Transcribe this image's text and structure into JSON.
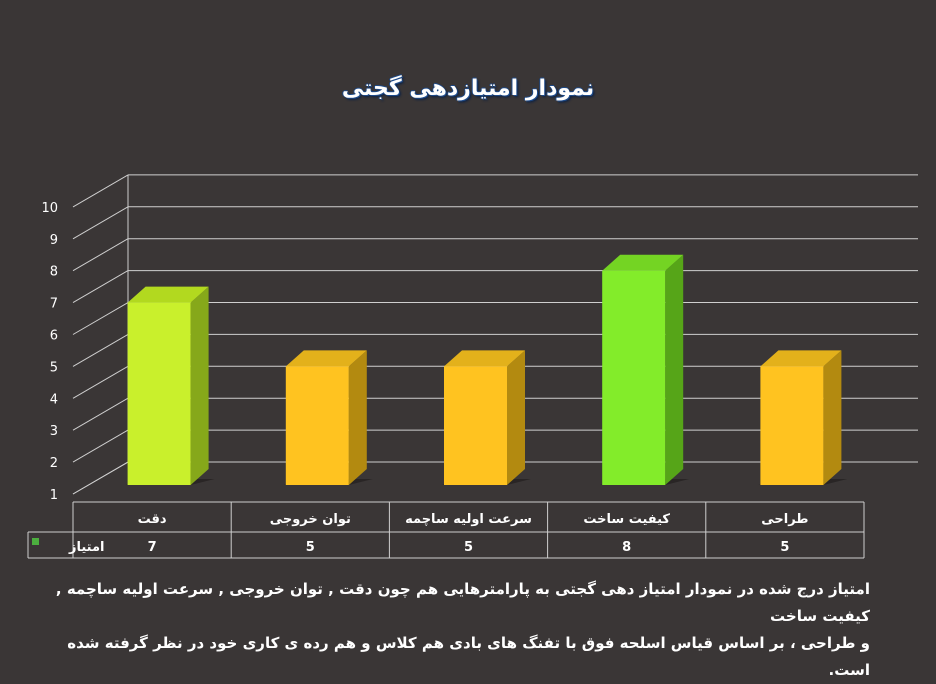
{
  "chart_data": {
    "type": "bar",
    "title": "نمودار امتیازدهی گجتی",
    "categories": [
      "دقت",
      "توان خروجی",
      "سرعت اولیه ساچمه",
      "کیفیت ساخت",
      "طراحی"
    ],
    "series": [
      {
        "name": "امتیاز",
        "values": [
          7,
          5,
          5,
          8,
          5
        ]
      }
    ],
    "value_labels": [
      "7",
      "5",
      "5",
      "8",
      "5"
    ],
    "ylim": [
      1,
      10
    ],
    "y_ticks": [
      "1",
      "2",
      "3",
      "4",
      "5",
      "6",
      "7",
      "8",
      "9",
      "10"
    ],
    "grid": true,
    "legend": "data-table-left",
    "bar_colors": [
      "#c9f02c",
      "#ffc320",
      "#ffc320",
      "#83ec2a",
      "#ffc320"
    ],
    "side_colors": [
      "#86a81a",
      "#b38a10",
      "#b38a10",
      "#56a518",
      "#b38a10"
    ],
    "top_colors": [
      "#b2d91f",
      "#e3b11b",
      "#e3b11b",
      "#74d423",
      "#e3b11b"
    ],
    "legend_color": "#4caf3f",
    "grid_color": "#cfcfcf",
    "background": "#3a3636"
  },
  "caption": {
    "lines": [
      "امتیاز درج شده در نمودار امتیاز دهی گجتی  به پارامترهایی هم چون دقت , توان خروجی , سرعت اولیه ساچمه , کیفیت ساخت",
      "و طراحی ، بر اساس قیاس اسلحه فوق با تفنگ های بادی هم کلاس و هم رده ی کاری خود در نظر گرفته شده است."
    ]
  }
}
